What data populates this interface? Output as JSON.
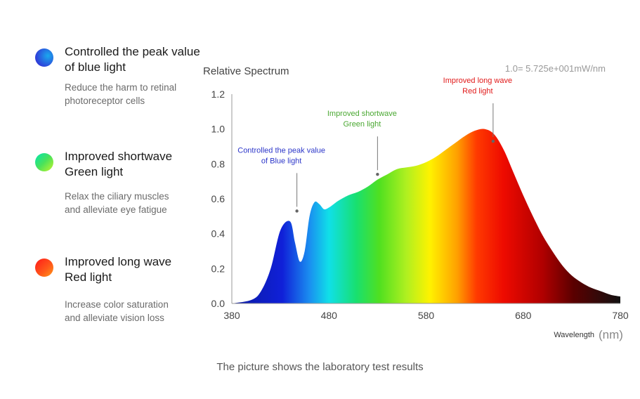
{
  "features": [
    {
      "title_line1": "Controlled the peak value",
      "title_line2": "of blue light",
      "desc_line1": "Reduce the harm to retinal",
      "desc_line2": "photoreceptor cells",
      "dot_colors": [
        "#2f3bd8",
        "#1aa9ee"
      ],
      "icon": "blue-light-dot-icon"
    },
    {
      "title_line1": "Improved shortwave",
      "title_line2": "Green light",
      "desc_line1": "Relax the ciliary muscles",
      "desc_line2": "and alleviate eye fatigue",
      "dot_colors": [
        "#00e5b0",
        "#a9f23a"
      ],
      "icon": "green-light-dot-icon"
    },
    {
      "title_line1": "Improved long wave",
      "title_line2": "Red light",
      "desc_line1": "Increase color saturation",
      "desc_line2": "and alleviate vision loss",
      "dot_colors": [
        "#ff2a1a",
        "#ff8a1a"
      ],
      "icon": "red-light-dot-icon"
    }
  ],
  "caption": "The picture shows the laboratory test results",
  "chart_data": {
    "type": "area",
    "title": "Relative Spectrum",
    "scale_note": "1.0= 5.725e+001mW/nm",
    "xlabel": "Wavelength",
    "xunit": "(nm)",
    "ylabel": "",
    "xlim": [
      380,
      780
    ],
    "ylim": [
      0,
      1.2
    ],
    "x_ticks": [
      "380",
      "480",
      "580",
      "680",
      "780"
    ],
    "y_ticks": [
      "0.0",
      "0.2",
      "0.4",
      "0.6",
      "0.8",
      "1.0",
      "1.2"
    ],
    "grid": false,
    "x": [
      380,
      400,
      410,
      420,
      430,
      440,
      445,
      450,
      455,
      460,
      465,
      470,
      475,
      480,
      485,
      490,
      500,
      510,
      520,
      530,
      540,
      550,
      560,
      570,
      580,
      590,
      600,
      610,
      620,
      630,
      640,
      650,
      660,
      670,
      680,
      690,
      700,
      710,
      720,
      730,
      740,
      750,
      760,
      770,
      780
    ],
    "y": [
      0.0,
      0.02,
      0.07,
      0.2,
      0.42,
      0.47,
      0.35,
      0.24,
      0.3,
      0.5,
      0.58,
      0.57,
      0.54,
      0.55,
      0.57,
      0.59,
      0.62,
      0.64,
      0.67,
      0.71,
      0.74,
      0.77,
      0.78,
      0.79,
      0.81,
      0.84,
      0.88,
      0.92,
      0.96,
      0.99,
      1.0,
      0.97,
      0.88,
      0.75,
      0.62,
      0.5,
      0.39,
      0.3,
      0.22,
      0.16,
      0.12,
      0.09,
      0.07,
      0.05,
      0.04
    ],
    "annotations": [
      {
        "line1": "Controlled the peak value",
        "line2": "of Blue light",
        "x": 447,
        "y": 0.53,
        "color": "#2c36c9"
      },
      {
        "line1": "Improved shortwave",
        "line2": "Green light",
        "x": 530,
        "y": 0.74,
        "color": "#4aa832"
      },
      {
        "line1": "Improved long wave",
        "line2": "Red light",
        "x": 649,
        "y": 0.93,
        "color": "#e11919"
      }
    ]
  }
}
